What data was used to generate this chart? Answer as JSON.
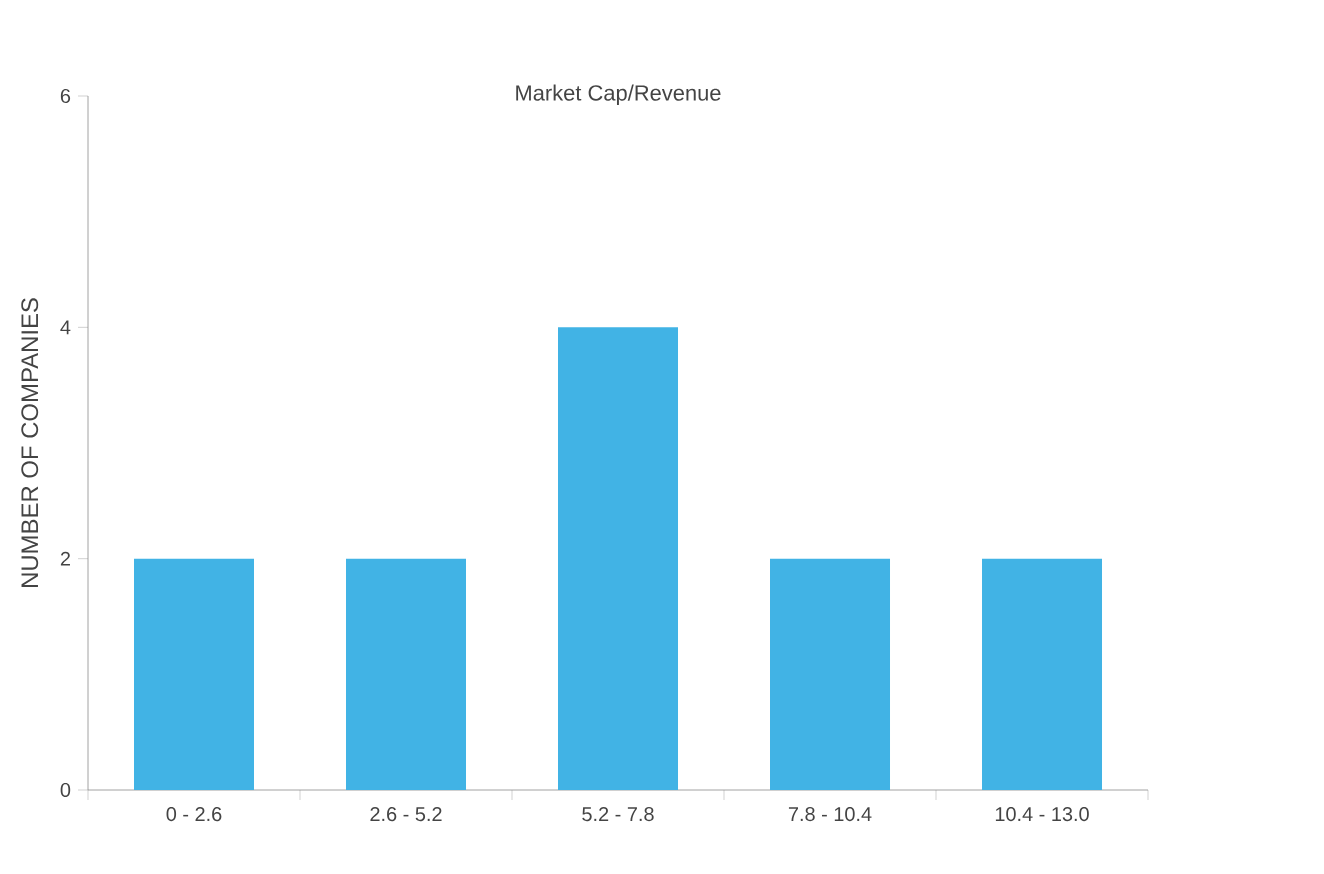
{
  "chart_data": {
    "type": "bar",
    "title": "Market Cap/Revenue",
    "ylabel": "NUMBER OF COMPANIES",
    "categories": [
      "0 - 2.6",
      "2.6 - 5.2",
      "5.2 - 7.8",
      "7.8 - 10.4",
      "10.4 - 13.0"
    ],
    "values": [
      2,
      2,
      4,
      2,
      2
    ],
    "color": "#41b3e5",
    "ylim": [
      0,
      6
    ],
    "yticks": [
      0,
      2,
      4,
      6
    ]
  }
}
